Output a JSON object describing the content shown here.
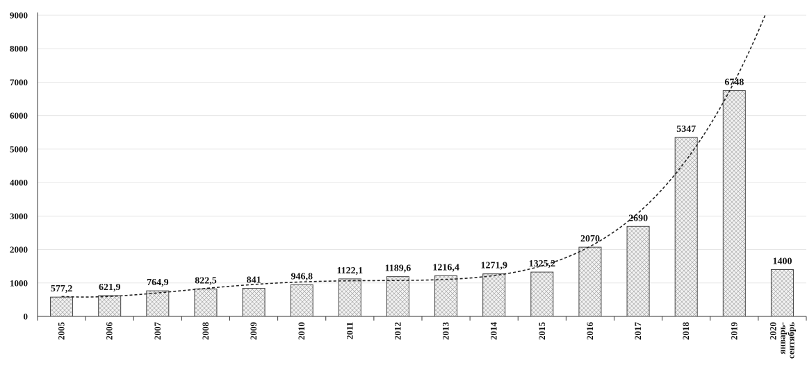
{
  "chart_data": {
    "type": "bar",
    "title": "",
    "xlabel": "",
    "ylabel": "",
    "ylim": [
      0,
      9000
    ],
    "y_ticks": [
      0,
      1000,
      2000,
      3000,
      4000,
      5000,
      6000,
      7000,
      8000,
      9000
    ],
    "grid": true,
    "legend": "none",
    "categories": [
      [
        "2005"
      ],
      [
        "2006"
      ],
      [
        "2007"
      ],
      [
        "2008"
      ],
      [
        "2009"
      ],
      [
        "2010"
      ],
      [
        "2011"
      ],
      [
        "2012"
      ],
      [
        "2013"
      ],
      [
        "2014"
      ],
      [
        "2015"
      ],
      [
        "2016"
      ],
      [
        "2017"
      ],
      [
        "2018"
      ],
      [
        "2019"
      ],
      [
        "2020",
        "январь-",
        "сентябрь"
      ]
    ],
    "values": [
      577.2,
      621.9,
      764.9,
      822.5,
      841,
      946.8,
      1122.1,
      1189.6,
      1216.4,
      1271.9,
      1325.2,
      2070,
      2690,
      5347,
      6748,
      1400
    ],
    "data_labels": [
      "577,2",
      "621,9",
      "764,9",
      "822,5",
      "841",
      "946,8",
      "1122,1",
      "1189,6",
      "1216,4",
      "1271,9",
      "1325,2",
      "2070",
      "2690",
      "5347",
      "6748",
      "1400"
    ],
    "trendline": {
      "type": "polynomial",
      "style": "dashed",
      "covers_categories": [
        "2005",
        "2019"
      ]
    },
    "colors": {
      "bar_fill": "#f2f2f2",
      "bar_pattern": "#9a9a9a",
      "bar_stroke": "#444444",
      "trendline": "#222222",
      "grid": "#e6e6e6"
    }
  }
}
